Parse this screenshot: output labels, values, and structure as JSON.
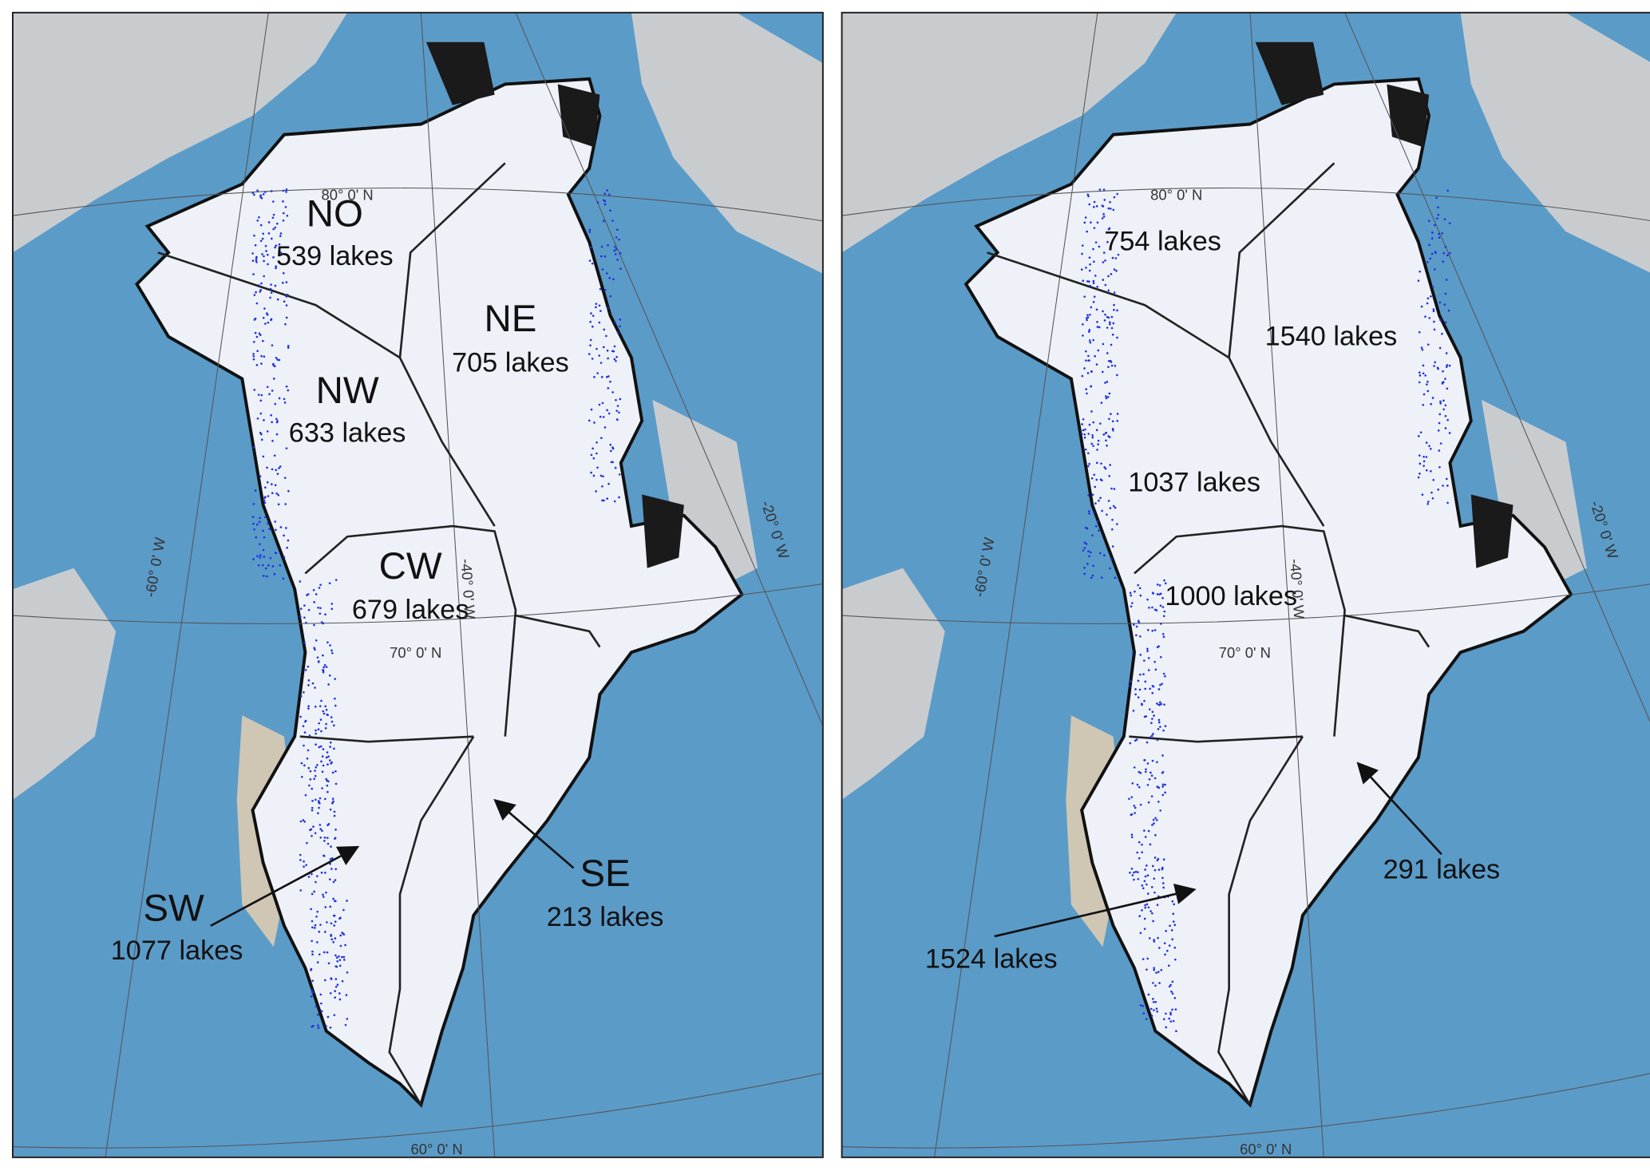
{
  "panels": [
    {
      "regions": [
        {
          "name": "NO",
          "lakes": "539 lakes"
        },
        {
          "name": "NE",
          "lakes": "705 lakes"
        },
        {
          "name": "NW",
          "lakes": "633 lakes"
        },
        {
          "name": "CW",
          "lakes": "679 lakes"
        },
        {
          "name": "SW",
          "lakes": "1077 lakes"
        },
        {
          "name": "SE",
          "lakes": "213 lakes"
        }
      ],
      "graticule": [
        "80° 0' N",
        "70° 0' N",
        "60° 0' N",
        "-60° 0' W",
        "-40° 0' W",
        "-20° 0' W"
      ]
    },
    {
      "regions": [
        {
          "lakes": "754 lakes"
        },
        {
          "lakes": "1540 lakes"
        },
        {
          "lakes": "1037 lakes"
        },
        {
          "lakes": "1000 lakes"
        },
        {
          "lakes": "1524 lakes"
        },
        {
          "lakes": "291 lakes"
        }
      ],
      "graticule": [
        "80° 0' N",
        "70° 0' N",
        "60° 0' N",
        "-60° 0' W",
        "-40° 0' W",
        "-20° 0' W"
      ]
    }
  ]
}
